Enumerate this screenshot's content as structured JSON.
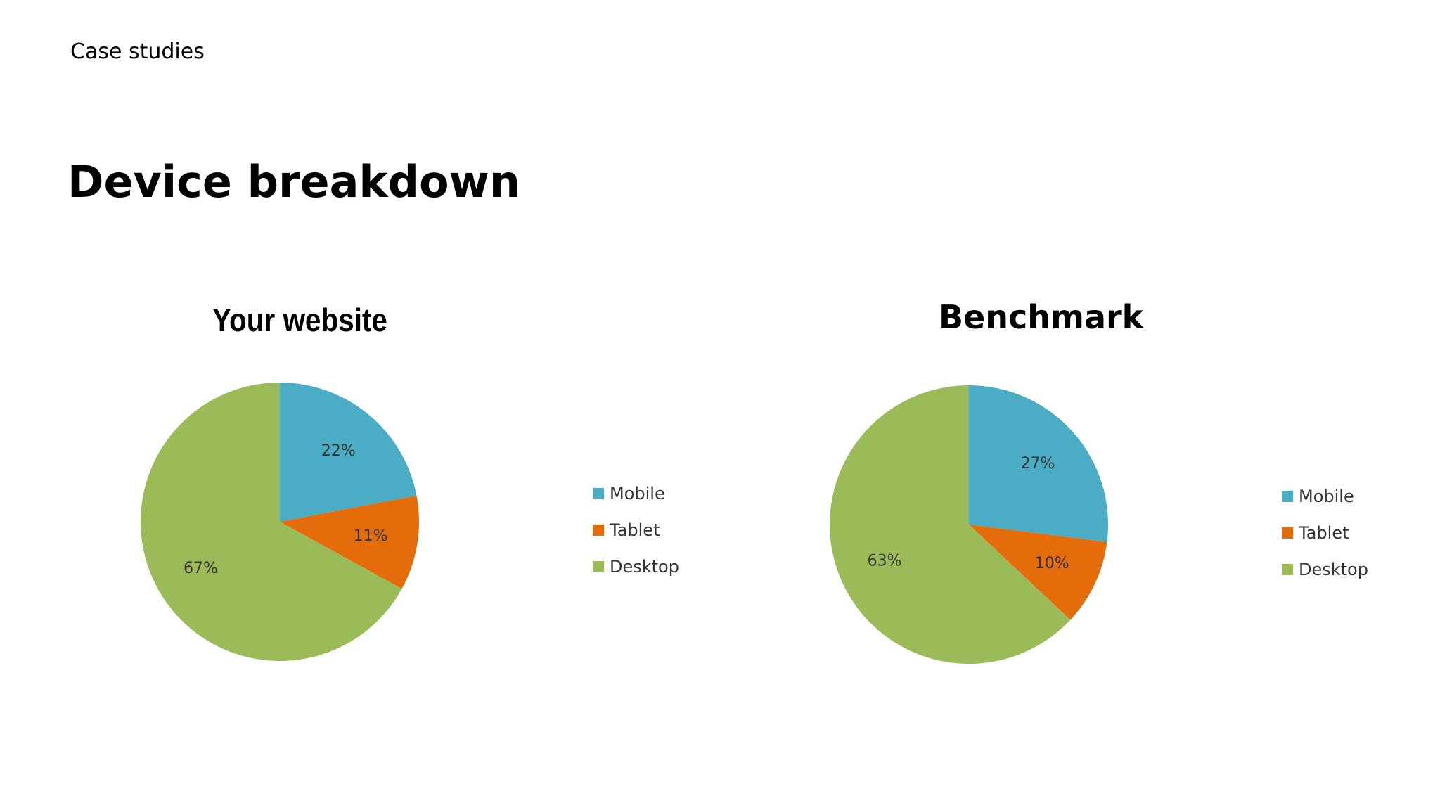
{
  "slide": {
    "eyebrow": "Case studies",
    "headline": "Device breakdown"
  },
  "colors": {
    "Mobile": "#4BACC6",
    "Tablet": "#E46C0A",
    "Desktop": "#9BBB59"
  },
  "chart_data": [
    {
      "type": "pie",
      "title": "Your website",
      "legend_position": "right",
      "slices": [
        {
          "label": "Mobile",
          "value": 22,
          "display": "22%"
        },
        {
          "label": "Tablet",
          "value": 11,
          "display": "11%"
        },
        {
          "label": "Desktop",
          "value": 67,
          "display": "67%"
        }
      ]
    },
    {
      "type": "pie",
      "title": "Benchmark",
      "legend_position": "right",
      "slices": [
        {
          "label": "Mobile",
          "value": 27,
          "display": "27%"
        },
        {
          "label": "Tablet",
          "value": 10,
          "display": "10%"
        },
        {
          "label": "Desktop",
          "value": 63,
          "display": "63%"
        }
      ]
    }
  ]
}
